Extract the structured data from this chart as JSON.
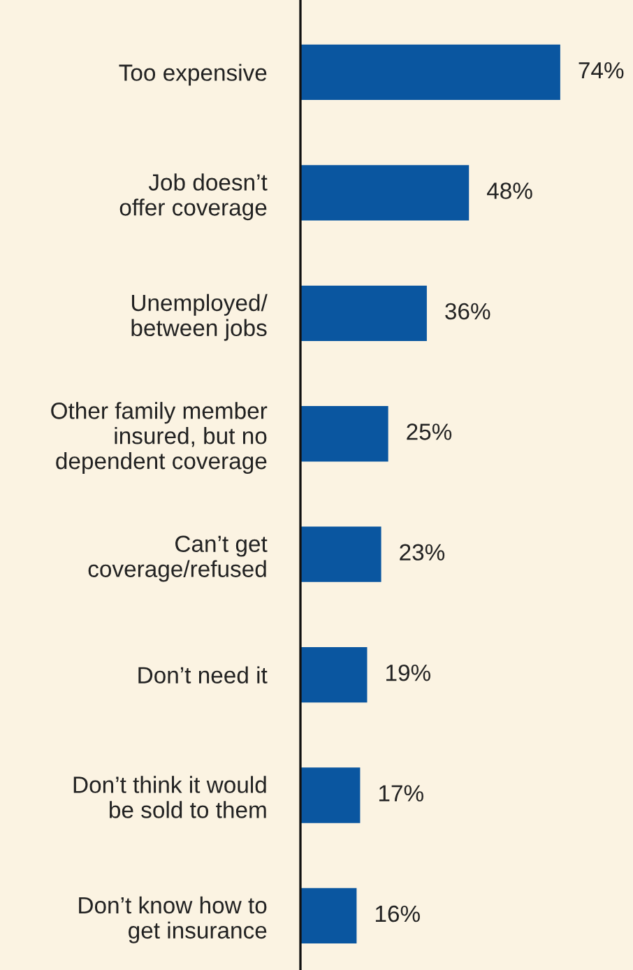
{
  "chart_data": {
    "type": "bar",
    "orientation": "horizontal",
    "categories": [
      "Too expensive",
      "Job doesn’t\noffer coverage",
      "Unemployed/\nbetween jobs",
      "Other family member\ninsured, but no\ndependent coverage",
      "Can’t get\ncoverage/refused",
      "Don’t need it",
      "Don’t think it would\nbe sold to them",
      "Don’t know how to\nget insurance"
    ],
    "values": [
      74,
      48,
      36,
      25,
      23,
      19,
      17,
      16
    ],
    "value_labels": [
      "74%",
      "48%",
      "36%",
      "25%",
      "23%",
      "19%",
      "17%",
      "16%"
    ],
    "color": "#0a56a0"
  }
}
